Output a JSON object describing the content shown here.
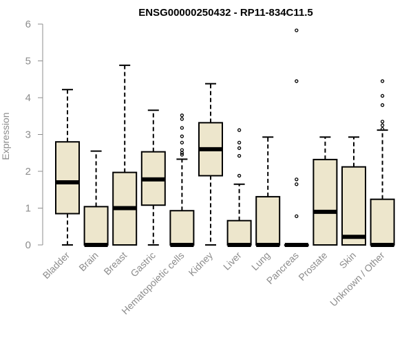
{
  "chart_data": {
    "type": "box",
    "title": "ENSG00000250432 - RP11-834C11.5",
    "xlabel": "",
    "ylabel": "Expression",
    "ylim": [
      0,
      6
    ],
    "yticks": [
      "0",
      "1",
      "2",
      "3",
      "4",
      "5",
      "6"
    ],
    "grid": false,
    "box_fill": "#ede6cc",
    "categories": [
      "Bladder",
      "Brain",
      "Breast",
      "Gastric",
      "Hematopoietic cells",
      "Kidney",
      "Liver",
      "Lung",
      "Pancreas",
      "Prostate",
      "Skin",
      "Unknown / Other"
    ],
    "boxes": [
      {
        "min": 0.0,
        "q1": 0.85,
        "median": 1.7,
        "q3": 2.8,
        "max": 4.22,
        "outliers": []
      },
      {
        "min": 0.0,
        "q1": 0.0,
        "median": 0.0,
        "q3": 1.04,
        "max": 2.55,
        "outliers": []
      },
      {
        "min": 0.0,
        "q1": 0.0,
        "median": 1.0,
        "q3": 1.97,
        "max": 4.88,
        "outliers": []
      },
      {
        "min": 0.0,
        "q1": 1.08,
        "median": 1.78,
        "q3": 2.53,
        "max": 3.66,
        "outliers": []
      },
      {
        "min": 0.0,
        "q1": 0.0,
        "median": 0.0,
        "q3": 0.93,
        "max": 2.33,
        "outliers": [
          3.52,
          3.42,
          3.18,
          2.95,
          2.78,
          2.58,
          2.5,
          2.45
        ]
      },
      {
        "min": 0.0,
        "q1": 1.88,
        "median": 2.6,
        "q3": 3.32,
        "max": 4.38,
        "outliers": []
      },
      {
        "min": 0.0,
        "q1": 0.0,
        "median": 0.0,
        "q3": 0.66,
        "max": 1.65,
        "outliers": [
          3.12,
          2.78,
          2.63,
          2.42,
          1.88
        ]
      },
      {
        "min": 0.0,
        "q1": 0.0,
        "median": 0.0,
        "q3": 1.31,
        "max": 2.93,
        "outliers": []
      },
      {
        "min": 0.0,
        "q1": 0.0,
        "median": 0.0,
        "q3": 0.0,
        "max": 0.0,
        "outliers": [
          5.83,
          4.45,
          1.78,
          1.65,
          0.78
        ]
      },
      {
        "min": 0.0,
        "q1": 0.0,
        "median": 0.9,
        "q3": 2.32,
        "max": 2.93,
        "outliers": []
      },
      {
        "min": 0.0,
        "q1": 0.0,
        "median": 0.22,
        "q3": 2.12,
        "max": 2.93,
        "outliers": []
      },
      {
        "min": 0.0,
        "q1": 0.0,
        "median": 0.0,
        "q3": 1.24,
        "max": 3.12,
        "outliers": [
          4.45,
          4.05,
          3.8,
          3.35,
          3.25,
          3.15
        ]
      }
    ]
  }
}
